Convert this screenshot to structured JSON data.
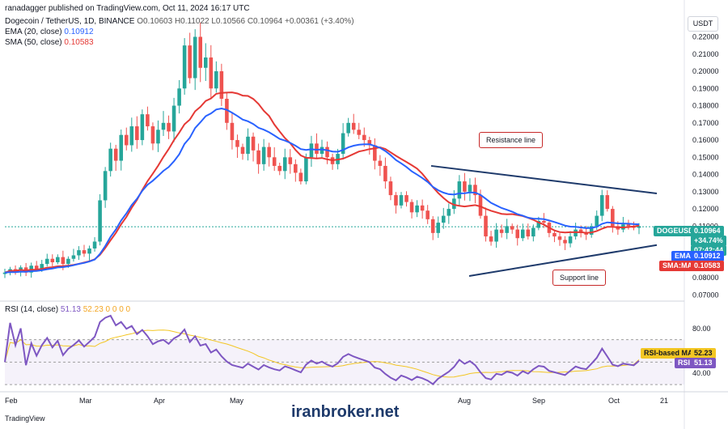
{
  "header": {
    "author": "ranadagger published on TradingView.com, Oct 11, 2024 16:17 UTC",
    "symbol_line": "Dogecoin / TetherUS, 1D, BINANCE",
    "ohlc": "O0.10603 H0.11022 L0.10566 C0.10964 +0.00361 (+3.40%)",
    "ema_label": "EMA (20, close)",
    "ema_value": "0.10912",
    "sma_label": "SMA (50, close)",
    "sma_value": "0.10583"
  },
  "currency_button": "USDT",
  "price_tags": {
    "symbol": "DOGEUSDT",
    "price": "0.10964",
    "change": "+34.74%",
    "countdown": "07:42:44",
    "ema_name": "EMA",
    "ema_value": "0.10912",
    "sma_name": "SMA:MA",
    "sma_value": "0.10583",
    "rsi_ma_name": "RSI-based MA",
    "rsi_ma_value": "52.23",
    "rsi_name": "RSI",
    "rsi_value": "51.13"
  },
  "annotations": {
    "resistance": "Resistance line",
    "support": "Support line"
  },
  "rsi_panel": {
    "label": "RSI (14, close)",
    "value": "51.13",
    "extra": "52.23 0 0 0 0"
  },
  "footer": {
    "logo": "TradingView",
    "watermark": "iranbroker.net"
  },
  "colors": {
    "up": "#26a69a",
    "down": "#ef5350",
    "ema": "#2962ff",
    "sma": "#e53935",
    "rsi": "#7e57c2",
    "rsi_ma": "#f3c623",
    "trend": "#1e3a6b"
  },
  "chart_data": {
    "type": "candlestick",
    "x_ticks": [
      "Feb",
      "Mar",
      "Apr",
      "May",
      "Aug",
      "Sep",
      "Oct",
      "21"
    ],
    "y_ticks": [
      0.07,
      0.08,
      0.09,
      0.1,
      0.11,
      0.12,
      0.13,
      0.14,
      0.15,
      0.16,
      0.17,
      0.18,
      0.19,
      0.2,
      0.21,
      0.22
    ],
    "y_tick_labels": [
      "0.07000",
      "0.08000",
      "0.09000",
      "0.10000",
      "0.11000",
      "0.12000",
      "0.13000",
      "0.14000",
      "0.15000",
      "0.16000",
      "0.17000",
      "0.18000",
      "0.19000",
      "0.20000",
      "0.21000",
      "0.22000"
    ],
    "ylim": [
      0.065,
      0.232
    ],
    "closes": [
      0.083,
      0.085,
      0.084,
      0.086,
      0.083,
      0.087,
      0.085,
      0.088,
      0.091,
      0.089,
      0.092,
      0.088,
      0.091,
      0.093,
      0.096,
      0.094,
      0.097,
      0.101,
      0.125,
      0.142,
      0.155,
      0.148,
      0.163,
      0.157,
      0.168,
      0.16,
      0.175,
      0.168,
      0.158,
      0.166,
      0.17,
      0.165,
      0.18,
      0.19,
      0.215,
      0.196,
      0.22,
      0.202,
      0.208,
      0.19,
      0.2,
      0.184,
      0.17,
      0.16,
      0.156,
      0.152,
      0.162,
      0.154,
      0.146,
      0.156,
      0.15,
      0.145,
      0.142,
      0.15,
      0.146,
      0.141,
      0.136,
      0.15,
      0.158,
      0.152,
      0.156,
      0.15,
      0.146,
      0.152,
      0.164,
      0.17,
      0.166,
      0.163,
      0.16,
      0.157,
      0.148,
      0.145,
      0.136,
      0.128,
      0.122,
      0.128,
      0.124,
      0.118,
      0.122,
      0.119,
      0.114,
      0.106,
      0.112,
      0.116,
      0.12,
      0.126,
      0.136,
      0.13,
      0.134,
      0.128,
      0.116,
      0.104,
      0.101,
      0.108,
      0.106,
      0.11,
      0.108,
      0.103,
      0.108,
      0.104,
      0.109,
      0.113,
      0.112,
      0.106,
      0.104,
      0.102,
      0.1,
      0.104,
      0.108,
      0.106,
      0.105,
      0.11,
      0.116,
      0.128,
      0.12,
      0.11,
      0.108,
      0.111,
      0.11,
      0.109,
      0.11
    ],
    "ema20": {
      "name": "EMA (20, close)",
      "last": 0.10912
    },
    "sma50": {
      "name": "SMA (50, close)",
      "last": 0.10583
    },
    "resistance_line": {
      "from": [
        "Jul 30",
        0.145
      ],
      "to": [
        "Oct 21",
        0.129
      ]
    },
    "support_line": {
      "from": [
        "Aug 5",
        0.081
      ],
      "to": [
        "Oct 21",
        0.099
      ]
    },
    "rsi": {
      "name": "RSI (14, close)",
      "y_ticks": [
        40,
        80
      ],
      "y_tick_labels": [
        "40.00",
        "80.00"
      ],
      "ylim": [
        25,
        95
      ],
      "bands": [
        30,
        70
      ],
      "last": 51.13,
      "ma_last": 52.23
    }
  }
}
